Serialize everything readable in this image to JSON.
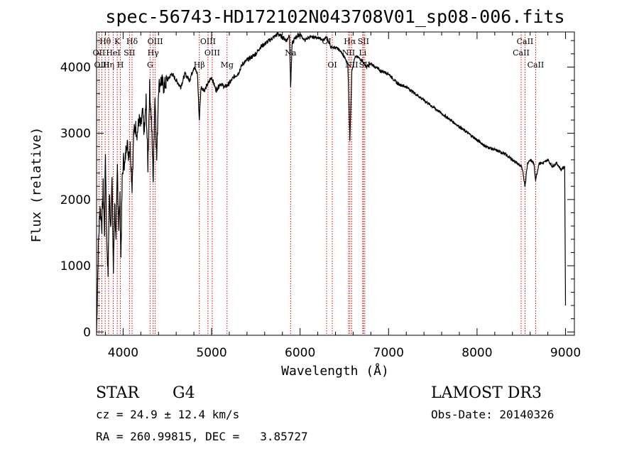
{
  "chart_data": {
    "type": "line",
    "title": "spec-56743-HD172102N043708V01_sp08-006.fits",
    "xlabel": "Wavelength (Å)",
    "ylabel": "Flux (relative)",
    "xlim": [
      3700,
      9100
    ],
    "ylim": [
      -50,
      4530
    ],
    "x_ticks": [
      {
        "value": 4000,
        "label": "4000"
      },
      {
        "value": 5000,
        "label": "5000"
      },
      {
        "value": 6000,
        "label": "6000"
      },
      {
        "value": 7000,
        "label": "7000"
      },
      {
        "value": 8000,
        "label": "8000"
      },
      {
        "value": 9000,
        "label": "9000"
      }
    ],
    "y_ticks": [
      {
        "value": 0,
        "label": "0"
      },
      {
        "value": 1000,
        "label": "1000"
      },
      {
        "value": 2000,
        "label": "2000"
      },
      {
        "value": 3000,
        "label": "3000"
      },
      {
        "value": 4000,
        "label": "4000"
      }
    ],
    "grid": false,
    "series": [
      {
        "color": "#000000",
        "x": [
          3700,
          3720,
          3740,
          3760,
          3775,
          3790,
          3800,
          3815,
          3830,
          3845,
          3860,
          3875,
          3890,
          3905,
          3920,
          3935,
          3950,
          3965,
          3975,
          3990,
          4005,
          4020,
          4040,
          4060,
          4080,
          4101,
          4120,
          4140,
          4160,
          4180,
          4200,
          4220,
          4240,
          4260,
          4280,
          4300,
          4320,
          4340,
          4360,
          4380,
          4400,
          4430,
          4460,
          4500,
          4550,
          4600,
          4650,
          4700,
          4750,
          4800,
          4840,
          4861,
          4880,
          4920,
          4960,
          5000,
          5050,
          5100,
          5150,
          5200,
          5250,
          5300,
          5350,
          5400,
          5450,
          5500,
          5550,
          5600,
          5650,
          5700,
          5750,
          5800,
          5850,
          5880,
          5893,
          5910,
          5950,
          6000,
          6050,
          6100,
          6150,
          6200,
          6250,
          6300,
          6350,
          6400,
          6450,
          6500,
          6540,
          6563,
          6585,
          6620,
          6650,
          6700,
          6750,
          6800,
          6900,
          7000,
          7100,
          7200,
          7300,
          7400,
          7500,
          7600,
          7700,
          7800,
          7900,
          8000,
          8100,
          8200,
          8300,
          8400,
          8450,
          8498,
          8520,
          8542,
          8570,
          8600,
          8640,
          8662,
          8700,
          8750,
          8800,
          8850,
          8900,
          8950,
          8990,
          9000
        ],
        "y": [
          0,
          1300,
          1900,
          1600,
          2200,
          1500,
          2700,
          1400,
          900,
          2100,
          1600,
          2300,
          900,
          2000,
          1300,
          2500,
          1600,
          2000,
          1100,
          2300,
          2600,
          2500,
          2900,
          2700,
          2800,
          2200,
          3000,
          3100,
          3000,
          3200,
          3100,
          3300,
          3000,
          3500,
          2500,
          3700,
          3200,
          2300,
          3600,
          2600,
          3700,
          3800,
          3700,
          3800,
          3900,
          3800,
          3700,
          3900,
          3800,
          4000,
          3900,
          3200,
          3700,
          3650,
          3750,
          3850,
          3650,
          3750,
          3700,
          3750,
          3850,
          3900,
          4050,
          4100,
          4150,
          4200,
          4300,
          4350,
          4400,
          4450,
          4500,
          4450,
          4400,
          4500,
          3700,
          4350,
          4450,
          4500,
          4400,
          4450,
          4450,
          4450,
          4400,
          4450,
          4300,
          4300,
          4250,
          4150,
          4050,
          2900,
          3950,
          4150,
          4150,
          4100,
          4000,
          4050,
          3950,
          3900,
          3750,
          3700,
          3600,
          3500,
          3400,
          3300,
          3200,
          3100,
          3000,
          2900,
          2800,
          2750,
          2700,
          2600,
          2550,
          2500,
          2400,
          2200,
          2550,
          2600,
          2550,
          2300,
          2550,
          2550,
          2600,
          2500,
          2550,
          2450,
          2500,
          400
        ]
      }
    ],
    "line_labels": [
      {
        "label": "Hθ",
        "wavelength": 3798,
        "row": 1
      },
      {
        "label": "OII",
        "wavelength": 3727,
        "row": 2
      },
      {
        "label": "OIII",
        "wavelength": 3760,
        "row": 3
      },
      {
        "label": "Hη",
        "wavelength": 3836,
        "row": 3
      },
      {
        "label": "K",
        "wavelength": 3934,
        "row": 1
      },
      {
        "label": "HeI",
        "wavelength": 3889,
        "row": 2
      },
      {
        "label": "SII",
        "wavelength": 4072,
        "row": 2
      },
      {
        "label": "H",
        "wavelength": 3969,
        "row": 3
      },
      {
        "label": "Hδ",
        "wavelength": 4101,
        "row": 1
      },
      {
        "label": "OIII",
        "wavelength": 4363,
        "row": 1
      },
      {
        "label": "Hγ",
        "wavelength": 4340,
        "row": 2
      },
      {
        "label": "G",
        "wavelength": 4305,
        "row": 3
      },
      {
        "label": "OIII",
        "wavelength": 4959,
        "row": 1
      },
      {
        "label": "OIII",
        "wavelength": 5007,
        "row": 2
      },
      {
        "label": "Hβ",
        "wavelength": 4861,
        "row": 3
      },
      {
        "label": "Mg",
        "wavelength": 5175,
        "row": 3
      },
      {
        "label": "Na",
        "wavelength": 5893,
        "row": 2
      },
      {
        "label": "OI",
        "wavelength": 6300,
        "row": 1
      },
      {
        "label": "OI",
        "wavelength": 6364,
        "row": 3
      },
      {
        "label": "Hα",
        "wavelength": 6563,
        "row": 1
      },
      {
        "label": "NII",
        "wavelength": 6548,
        "row": 2
      },
      {
        "label": "NII",
        "wavelength": 6583,
        "row": 3
      },
      {
        "label": "SII",
        "wavelength": 6716,
        "row": 1
      },
      {
        "label": "Li",
        "wavelength": 6708,
        "row": 2
      },
      {
        "label": "SII",
        "wavelength": 6731,
        "row": 3
      },
      {
        "label": "CaII",
        "wavelength": 8542,
        "row": 1
      },
      {
        "label": "CaII",
        "wavelength": 8498,
        "row": 2
      },
      {
        "label": "CaII",
        "wavelength": 8662,
        "row": 3
      }
    ]
  },
  "info": {
    "object_class": "STAR",
    "subclass": "G4",
    "survey": "LAMOST DR3",
    "redshift": "cz = 24.9 ± 12.4 km/s",
    "obs_date": "Obs-Date: 20140326",
    "coordinates": "RA = 260.99815, DEC =   3.85727"
  }
}
